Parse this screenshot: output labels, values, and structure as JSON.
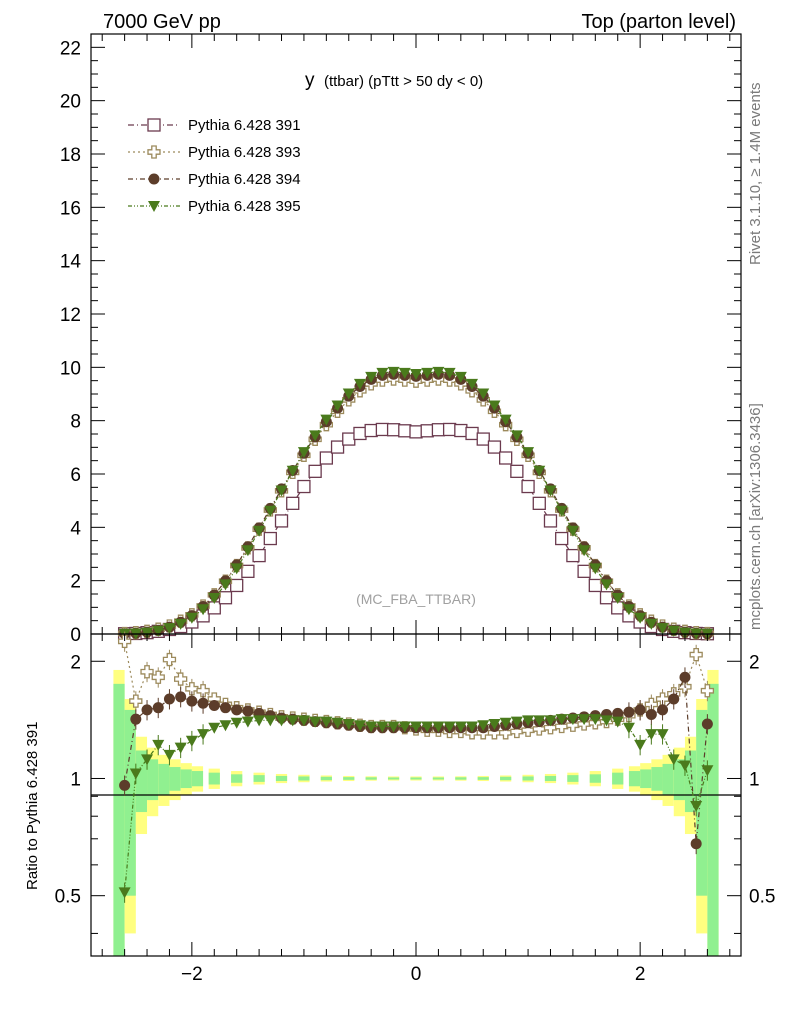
{
  "header": {
    "left": "7000 GeV pp",
    "right": "Top (parton level)"
  },
  "side_labels": {
    "rivet": "Rivet 3.1.10, ≥ 1.4M events",
    "mcplots": "mcplots.cern.ch [arXiv:1306.3436]"
  },
  "chart_data": [
    {
      "type": "line",
      "title_main": "y",
      "title_rest": "(ttbar) (pTtt > 50 dy < 0)",
      "watermark": "(MC_FBA_TTBAR)",
      "xlim": [
        -2.9,
        2.9
      ],
      "ylim": [
        0,
        22.5
      ],
      "yticks": [
        0,
        2,
        4,
        6,
        8,
        10,
        12,
        14,
        16,
        18,
        20,
        22
      ],
      "x": [
        -2.6,
        -2.5,
        -2.4,
        -2.3,
        -2.2,
        -2.1,
        -2.0,
        -1.9,
        -1.8,
        -1.7,
        -1.6,
        -1.5,
        -1.4,
        -1.3,
        -1.2,
        -1.1,
        -1.0,
        -0.9,
        -0.8,
        -0.7,
        -0.6,
        -0.5,
        -0.4,
        -0.3,
        -0.2,
        -0.1,
        0.0,
        0.1,
        0.2,
        0.3,
        0.4,
        0.5,
        0.6,
        0.7,
        0.8,
        0.9,
        1.0,
        1.1,
        1.2,
        1.3,
        1.4,
        1.5,
        1.6,
        1.7,
        1.8,
        1.9,
        2.0,
        2.1,
        2.2,
        2.3,
        2.4,
        2.5,
        2.6
      ],
      "series": [
        {
          "name": "Pythia 6.428 391",
          "color": "#6b3a4e",
          "marker": "open-square",
          "values": [
            0.01,
            0.02,
            0.05,
            0.1,
            0.17,
            0.28,
            0.45,
            0.68,
            0.98,
            1.36,
            1.82,
            2.35,
            2.94,
            3.58,
            4.24,
            4.9,
            5.53,
            6.1,
            6.6,
            7.01,
            7.31,
            7.52,
            7.63,
            7.67,
            7.66,
            7.62,
            7.58,
            7.62,
            7.66,
            7.67,
            7.63,
            7.52,
            7.31,
            7.01,
            6.6,
            6.1,
            5.53,
            4.9,
            4.24,
            3.58,
            2.94,
            2.35,
            1.82,
            1.36,
            0.98,
            0.68,
            0.45,
            0.28,
            0.17,
            0.1,
            0.05,
            0.02,
            0.01
          ]
        },
        {
          "name": "Pythia 6.428 393",
          "color": "#9c8a5c",
          "marker": "open-cross",
          "values": [
            0.02,
            0.05,
            0.1,
            0.18,
            0.3,
            0.48,
            0.72,
            1.05,
            1.47,
            1.98,
            2.57,
            3.23,
            3.93,
            4.65,
            5.37,
            6.06,
            6.7,
            7.3,
            7.85,
            8.35,
            8.78,
            9.12,
            9.38,
            9.52,
            9.56,
            9.52,
            9.48,
            9.52,
            9.56,
            9.52,
            9.38,
            9.12,
            8.78,
            8.35,
            7.85,
            7.3,
            6.7,
            6.06,
            5.37,
            4.65,
            3.93,
            3.23,
            2.57,
            1.98,
            1.47,
            1.05,
            0.72,
            0.48,
            0.3,
            0.18,
            0.1,
            0.05,
            0.02
          ]
        },
        {
          "name": "Pythia 6.428 394",
          "color": "#5c3d2a",
          "marker": "filled-circle",
          "values": [
            0.01,
            0.03,
            0.07,
            0.14,
            0.26,
            0.44,
            0.69,
            1.03,
            1.46,
            1.99,
            2.59,
            3.27,
            3.98,
            4.71,
            5.44,
            6.13,
            6.78,
            7.39,
            7.96,
            8.47,
            8.92,
            9.28,
            9.55,
            9.7,
            9.74,
            9.7,
            9.66,
            9.7,
            9.74,
            9.7,
            9.55,
            9.28,
            8.92,
            8.47,
            7.96,
            7.39,
            6.78,
            6.13,
            5.44,
            4.71,
            3.98,
            3.27,
            2.59,
            1.99,
            1.46,
            1.03,
            0.69,
            0.44,
            0.26,
            0.14,
            0.07,
            0.03,
            0.01
          ]
        },
        {
          "name": "Pythia 6.428 395",
          "color": "#4a7a1c",
          "marker": "filled-triangle-down",
          "values": [
            0.01,
            0.02,
            0.05,
            0.12,
            0.22,
            0.38,
            0.61,
            0.93,
            1.35,
            1.86,
            2.46,
            3.14,
            3.87,
            4.62,
            5.38,
            6.12,
            6.82,
            7.45,
            8.04,
            8.57,
            9.02,
            9.38,
            9.64,
            9.79,
            9.83,
            9.79,
            9.75,
            9.79,
            9.83,
            9.79,
            9.64,
            9.38,
            9.02,
            8.57,
            8.04,
            7.45,
            6.82,
            6.12,
            5.38,
            4.62,
            3.87,
            3.14,
            2.46,
            1.86,
            1.35,
            0.93,
            0.61,
            0.38,
            0.22,
            0.12,
            0.05,
            0.02,
            0.01
          ]
        }
      ]
    },
    {
      "type": "line",
      "ylabel": "Ratio to Pythia 6.428 391",
      "xlim": [
        -2.9,
        2.9
      ],
      "ylim": [
        0.35,
        2.35
      ],
      "ylog": true,
      "yticks": [
        0.5,
        1,
        2
      ],
      "xticks": [
        -2,
        0,
        2
      ],
      "reference_line": 1,
      "band_x": [
        -2.65,
        -2.55,
        -2.45,
        -2.35,
        -2.25,
        -2.15,
        -2.05,
        -1.95,
        -1.8,
        -1.6,
        -1.4,
        -1.2,
        -1.0,
        -0.8,
        -0.6,
        -0.4,
        -0.2,
        0.0,
        0.2,
        0.4,
        0.6,
        0.8,
        1.0,
        1.2,
        1.4,
        1.6,
        1.8,
        1.95,
        2.05,
        2.15,
        2.25,
        2.35,
        2.45,
        2.55,
        2.65
      ],
      "band_inner": [
        0.75,
        0.5,
        0.18,
        0.12,
        0.09,
        0.07,
        0.055,
        0.045,
        0.035,
        0.025,
        0.02,
        0.015,
        0.012,
        0.01,
        0.008,
        0.007,
        0.006,
        0.006,
        0.006,
        0.007,
        0.008,
        0.01,
        0.012,
        0.015,
        0.02,
        0.025,
        0.035,
        0.045,
        0.055,
        0.07,
        0.09,
        0.12,
        0.18,
        0.5,
        0.75
      ],
      "band_outer": [
        0.9,
        0.6,
        0.28,
        0.2,
        0.15,
        0.12,
        0.095,
        0.075,
        0.06,
        0.045,
        0.035,
        0.027,
        0.022,
        0.018,
        0.015,
        0.013,
        0.012,
        0.012,
        0.012,
        0.013,
        0.015,
        0.018,
        0.022,
        0.027,
        0.035,
        0.045,
        0.06,
        0.075,
        0.095,
        0.12,
        0.15,
        0.2,
        0.28,
        0.6,
        0.9
      ],
      "series": [
        {
          "name": "Pythia 6.428 393",
          "color": "#9c8a5c",
          "marker": "open-cross",
          "values": [
            2.25,
            1.58,
            1.88,
            1.82,
            2.02,
            1.8,
            1.7,
            1.68,
            1.6,
            1.55,
            1.52,
            1.5,
            1.48,
            1.46,
            1.44,
            1.43,
            1.42,
            1.41,
            1.4,
            1.39,
            1.38,
            1.37,
            1.36,
            1.36,
            1.36,
            1.35,
            1.34,
            1.33,
            1.33,
            1.32,
            1.32,
            1.31,
            1.31,
            1.31,
            1.31,
            1.32,
            1.33,
            1.34,
            1.35,
            1.36,
            1.37,
            1.38,
            1.39,
            1.4,
            1.42,
            1.45,
            1.5,
            1.55,
            1.6,
            1.65,
            1.72,
            2.08,
            1.68
          ]
        },
        {
          "name": "Pythia 6.428 394",
          "color": "#5c3d2a",
          "marker": "filled-circle",
          "values": [
            0.96,
            1.42,
            1.5,
            1.52,
            1.6,
            1.62,
            1.58,
            1.56,
            1.54,
            1.52,
            1.5,
            1.49,
            1.47,
            1.45,
            1.43,
            1.42,
            1.41,
            1.4,
            1.39,
            1.38,
            1.37,
            1.36,
            1.35,
            1.35,
            1.35,
            1.35,
            1.35,
            1.35,
            1.35,
            1.35,
            1.35,
            1.35,
            1.35,
            1.36,
            1.37,
            1.38,
            1.39,
            1.4,
            1.41,
            1.42,
            1.43,
            1.44,
            1.45,
            1.46,
            1.47,
            1.48,
            1.5,
            1.46,
            1.5,
            1.6,
            1.82,
            0.68,
            1.38
          ]
        },
        {
          "name": "Pythia 6.428 395",
          "color": "#4a7a1c",
          "marker": "filled-triangle-down",
          "values": [
            0.51,
            1.03,
            1.12,
            1.22,
            1.15,
            1.2,
            1.25,
            1.3,
            1.35,
            1.37,
            1.39,
            1.4,
            1.41,
            1.41,
            1.41,
            1.41,
            1.41,
            1.4,
            1.4,
            1.39,
            1.38,
            1.37,
            1.36,
            1.36,
            1.36,
            1.36,
            1.36,
            1.36,
            1.36,
            1.36,
            1.36,
            1.36,
            1.37,
            1.38,
            1.39,
            1.4,
            1.41,
            1.41,
            1.41,
            1.42,
            1.42,
            1.42,
            1.42,
            1.41,
            1.4,
            1.35,
            1.22,
            1.3,
            1.3,
            1.12,
            1.08,
            0.85,
            1.05
          ]
        }
      ]
    }
  ]
}
